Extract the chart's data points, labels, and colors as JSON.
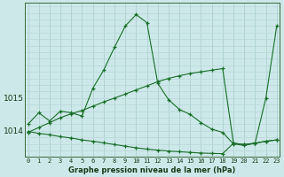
{
  "title": "Graphe pression niveau de la mer (hPa)",
  "bg_color": "#cce8e8",
  "plot_bg_color": "#cce8e8",
  "grid_color_v": "#aacccc",
  "grid_color_h": "#b8d8d8",
  "line_color": "#1a6e2a",
  "x_ticks": [
    0,
    1,
    2,
    3,
    4,
    5,
    6,
    7,
    8,
    9,
    10,
    11,
    12,
    13,
    14,
    15,
    16,
    17,
    18,
    19,
    20,
    21,
    22,
    23
  ],
  "y_ticks": [
    1014,
    1015
  ],
  "ylim": [
    1013.2,
    1017.9
  ],
  "xlim": [
    -0.3,
    23.3
  ],
  "s1": [
    1014.2,
    1014.55,
    1014.3,
    1014.6,
    1014.55,
    1014.45,
    1015.3,
    1015.85,
    1016.55,
    1017.2,
    1017.55,
    1017.3,
    1015.45,
    1014.95,
    1014.65,
    1014.5,
    1014.25,
    1014.05,
    1013.95,
    1013.6,
    1013.55,
    1013.62,
    1015.0,
    1017.2
  ],
  "s2": [
    1013.95,
    1014.1,
    1014.25,
    1014.4,
    1014.52,
    1014.62,
    1014.75,
    1014.88,
    1015.0,
    1015.12,
    1015.25,
    1015.37,
    1015.5,
    1015.6,
    1015.68,
    1015.75,
    1015.8,
    1015.85,
    1015.9,
    1013.62,
    1013.58,
    1013.62,
    1013.68,
    1013.72
  ],
  "s3": [
    1013.98,
    1013.92,
    1013.88,
    1013.82,
    1013.78,
    1013.72,
    1013.68,
    1013.63,
    1013.58,
    1013.53,
    1013.48,
    1013.44,
    1013.41,
    1013.38,
    1013.36,
    1013.34,
    1013.32,
    1013.31,
    1013.3,
    1013.62,
    1013.58,
    1013.62,
    1013.68,
    1013.72
  ],
  "xlabel_fontsize": 6.0,
  "ytick_fontsize": 6.5,
  "xtick_fontsize": 5.0
}
